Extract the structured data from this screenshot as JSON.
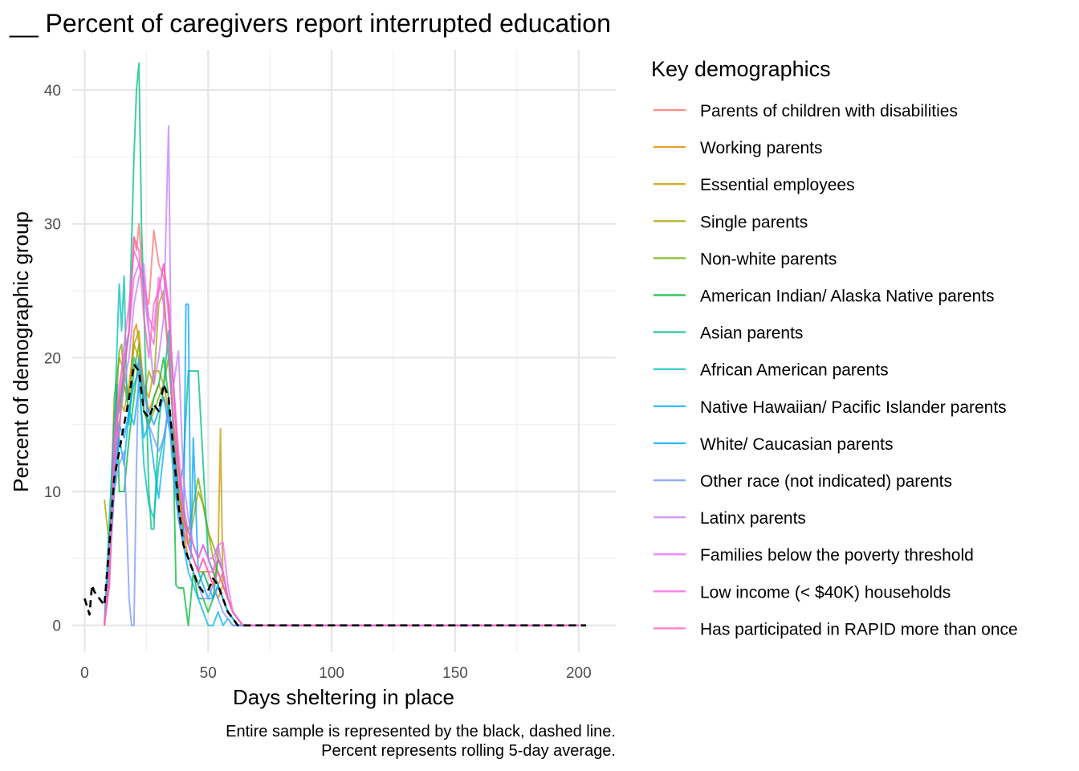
{
  "chart_data": {
    "type": "line",
    "title": "__ Percent of caregivers report interrupted education",
    "xlabel": "Days sheltering in place",
    "ylabel": "Percent of demographic group",
    "caption": [
      "Entire sample is represented by the black, dashed line.",
      "Percent represents rolling 5-day average."
    ],
    "xlim": [
      -5,
      215
    ],
    "ylim": [
      -2,
      43
    ],
    "x_ticks": [
      0,
      50,
      100,
      150,
      200
    ],
    "y_ticks": [
      0,
      10,
      20,
      30,
      40
    ],
    "grid": true,
    "legend": {
      "title": "Key demographics",
      "placement": "right"
    },
    "series": [
      {
        "name": "Parents of children with disabilities",
        "color": "#F8766D",
        "x": [
          8,
          10,
          12,
          14,
          16,
          18,
          20,
          21,
          22,
          24,
          26,
          28,
          30,
          32,
          34,
          36,
          38,
          40,
          42,
          44,
          46,
          48,
          50,
          52,
          54,
          56,
          58,
          60,
          62,
          64,
          70,
          100,
          150,
          200
        ],
        "y": [
          0,
          5,
          16,
          14,
          20,
          22,
          29,
          28,
          30,
          25,
          24,
          29.5,
          27,
          26,
          24,
          18,
          12,
          8,
          7,
          6,
          5,
          6,
          5,
          4,
          3,
          4,
          2,
          1,
          0.5,
          0,
          0,
          0,
          0,
          0
        ]
      },
      {
        "name": "Working parents",
        "color": "#E58700",
        "x": [
          8,
          10,
          12,
          14,
          16,
          18,
          20,
          21,
          22,
          24,
          26,
          28,
          30,
          32,
          34,
          36,
          38,
          40,
          42,
          44,
          46,
          48,
          50,
          52,
          54,
          56,
          58,
          60,
          62,
          64,
          70,
          100,
          150,
          200
        ],
        "y": [
          0,
          3,
          12,
          15,
          18,
          17,
          22,
          22.5,
          21,
          18,
          16,
          17,
          18,
          17,
          16,
          14,
          10,
          7,
          6,
          5,
          4,
          4,
          4,
          3,
          2,
          3,
          2,
          1,
          0.5,
          0,
          0,
          0,
          0,
          0
        ]
      },
      {
        "name": "Essential employees",
        "color": "#C99800",
        "x": [
          8,
          10,
          12,
          14,
          16,
          18,
          20,
          22,
          24,
          26,
          28,
          30,
          32,
          34,
          36,
          38,
          40,
          42,
          44,
          46,
          48,
          50,
          52,
          54,
          55,
          56,
          58,
          60,
          62,
          64,
          70,
          100,
          150,
          200
        ],
        "y": [
          0,
          4,
          13,
          17,
          16,
          18,
          21,
          20,
          18,
          17,
          19,
          19,
          18,
          16,
          13,
          10,
          7,
          5,
          4,
          3,
          4,
          3,
          3,
          5,
          14.7,
          3,
          2,
          1,
          0.5,
          0,
          0,
          0,
          0,
          0
        ]
      },
      {
        "name": "Single parents",
        "color": "#A3A500",
        "x": [
          8,
          10,
          12,
          14,
          16,
          18,
          20,
          22,
          24,
          26,
          28,
          30,
          32,
          34,
          36,
          38,
          40,
          42,
          44,
          46,
          48,
          50,
          52,
          54,
          56,
          58,
          60,
          62,
          64,
          70,
          100,
          150,
          200
        ],
        "y": [
          9.4,
          6,
          17,
          20,
          19,
          17,
          21,
          22,
          17,
          19,
          18,
          24,
          25,
          20,
          15,
          12,
          9,
          6,
          8,
          10,
          9,
          7,
          5,
          4,
          3,
          2,
          1,
          0.5,
          0,
          0,
          0,
          0,
          0
        ]
      },
      {
        "name": "Non-white parents",
        "color": "#6BB100",
        "x": [
          8,
          10,
          12,
          14,
          15,
          16,
          18,
          20,
          22,
          24,
          26,
          28,
          30,
          32,
          34,
          36,
          38,
          40,
          42,
          44,
          46,
          48,
          50,
          52,
          54,
          56,
          58,
          60,
          62,
          64,
          70,
          100,
          150,
          200
        ],
        "y": [
          0,
          4,
          14,
          20.5,
          21,
          18,
          16,
          19,
          21,
          16,
          15,
          16,
          17,
          18,
          20,
          15,
          10,
          8,
          7,
          9,
          11,
          9,
          7,
          6,
          5,
          4,
          2,
          1,
          0.5,
          0,
          0,
          0,
          0,
          0
        ]
      },
      {
        "name": "American Indian/ Alaska Native parents",
        "color": "#00BA38",
        "x": [
          8,
          10,
          12,
          13,
          14,
          16,
          18,
          20,
          22,
          24,
          26,
          28,
          30,
          32,
          34,
          36,
          37,
          38,
          40,
          42,
          44,
          46,
          48,
          50,
          52,
          54,
          56,
          58,
          60,
          62,
          64,
          70,
          100,
          150,
          200
        ],
        "y": [
          0,
          6,
          12,
          18,
          10,
          10,
          14,
          17,
          20,
          16,
          15,
          17,
          18,
          20,
          17,
          12,
          3,
          2.8,
          2.8,
          0,
          4,
          2,
          2,
          1,
          2,
          5,
          4,
          2,
          1,
          0.5,
          0,
          0,
          0,
          0,
          0
        ]
      },
      {
        "name": "Asian parents",
        "color": "#00BF7D",
        "x": [
          8,
          10,
          12,
          14,
          16,
          18,
          20,
          21,
          22,
          23,
          24,
          26,
          27,
          28,
          30,
          32,
          34,
          36,
          38,
          40,
          42,
          44,
          46,
          48,
          50,
          52,
          54,
          56,
          58,
          60,
          62,
          64,
          70,
          100,
          150,
          200
        ],
        "y": [
          0,
          5,
          15,
          16,
          19,
          22,
          35,
          40,
          42,
          30,
          24,
          10,
          7.2,
          7.2,
          15,
          18,
          22,
          14,
          10,
          12,
          19,
          19,
          19,
          12,
          5,
          4,
          3,
          2,
          1,
          0.5,
          0,
          0,
          0,
          0,
          0,
          0
        ]
      },
      {
        "name": "African American parents",
        "color": "#00C0B8",
        "x": [
          8,
          10,
          12,
          14,
          15,
          16,
          17,
          18,
          20,
          22,
          24,
          26,
          28,
          30,
          32,
          34,
          36,
          38,
          40,
          42,
          44,
          46,
          48,
          50,
          52,
          54,
          56,
          58,
          60,
          62,
          64,
          70,
          100,
          150,
          200
        ],
        "y": [
          0,
          8,
          15,
          25.5,
          22,
          26.1,
          18,
          15,
          20,
          19,
          12,
          9,
          8,
          12,
          14,
          16,
          11,
          8,
          6,
          5,
          4,
          3,
          4,
          3,
          2,
          3,
          2,
          1,
          0.5,
          0,
          0,
          0,
          0,
          0,
          0
        ]
      },
      {
        "name": "Native Hawaiian/ Pacific Islander parents",
        "color": "#00B4EF",
        "x": [
          8,
          10,
          12,
          14,
          16,
          18,
          20,
          22,
          24,
          26,
          28,
          30,
          32,
          34,
          36,
          38,
          40,
          42,
          44,
          46,
          48,
          50,
          52,
          54,
          56,
          58,
          60,
          62,
          64,
          70,
          100,
          150,
          200
        ],
        "y": [
          0,
          4,
          10,
          14,
          12,
          16,
          15,
          18,
          14,
          15,
          12,
          9.5,
          13,
          17,
          12,
          8,
          6,
          4,
          3,
          2,
          1,
          0,
          0,
          1,
          0,
          0.5,
          0,
          0,
          0,
          0,
          0,
          0,
          0
        ]
      },
      {
        "name": "White/ Caucasian parents",
        "color": "#00A5FF",
        "x": [
          8,
          10,
          12,
          14,
          16,
          18,
          20,
          22,
          24,
          26,
          28,
          30,
          32,
          34,
          36,
          38,
          40,
          41,
          42,
          43,
          44,
          46,
          48,
          50,
          52,
          54,
          56,
          58,
          60,
          62,
          64,
          70,
          100,
          150,
          200
        ],
        "y": [
          0,
          5,
          11,
          15,
          14,
          16,
          18,
          19,
          17,
          16,
          15,
          16,
          17,
          15,
          13,
          9,
          6,
          24,
          24,
          5,
          14,
          4,
          3,
          2,
          2,
          3,
          2,
          1,
          0.5,
          0,
          0,
          0,
          0,
          0,
          0
        ]
      },
      {
        "name": "Other race (not indicated) parents",
        "color": "#7997FF",
        "x": [
          8,
          10,
          12,
          14,
          16,
          17,
          18,
          19,
          20,
          21,
          22,
          24,
          26,
          28,
          30,
          32,
          34,
          36,
          38,
          40,
          42,
          44,
          46,
          48,
          50,
          52,
          54,
          56,
          58,
          60,
          62,
          64,
          70,
          100,
          150,
          200
        ],
        "y": [
          0,
          4,
          10,
          12,
          13,
          8,
          2,
          0,
          0,
          12,
          20,
          18,
          15,
          14,
          13,
          14,
          16,
          12,
          8,
          6,
          5,
          4,
          3,
          2,
          2,
          3,
          2,
          1,
          0.5,
          0,
          0,
          0,
          0,
          0,
          0,
          0
        ]
      },
      {
        "name": "Latinx parents",
        "color": "#C77CFF",
        "x": [
          8,
          10,
          12,
          14,
          16,
          18,
          20,
          22,
          24,
          26,
          28,
          30,
          32,
          34,
          35,
          36,
          38,
          40,
          42,
          44,
          46,
          48,
          50,
          52,
          54,
          56,
          58,
          60,
          62,
          64,
          70,
          100,
          150,
          200
        ],
        "y": [
          0,
          4,
          12,
          15,
          18,
          20,
          24,
          26,
          27,
          22,
          18,
          20,
          23,
          37.3,
          20,
          18,
          20.5,
          11,
          8,
          6,
          5,
          6,
          5,
          4,
          6,
          4,
          2,
          1,
          0.5,
          0,
          0,
          0,
          0,
          0
        ]
      },
      {
        "name": "Families below the poverty threshold",
        "color": "#E76BF3",
        "x": [
          8,
          10,
          12,
          14,
          16,
          18,
          20,
          22,
          24,
          26,
          28,
          30,
          32,
          34,
          36,
          38,
          40,
          42,
          44,
          46,
          48,
          50,
          52,
          54,
          56,
          58,
          60,
          62,
          64,
          70,
          100,
          150,
          200
        ],
        "y": [
          0,
          4,
          14,
          18,
          20,
          22,
          26,
          27,
          25,
          22,
          21,
          25,
          27,
          23,
          18,
          13,
          9,
          7,
          6,
          5,
          6,
          5,
          5,
          6,
          6.2,
          3,
          1,
          0.5,
          0,
          0,
          0,
          0,
          0
        ]
      },
      {
        "name": "Low income (< $40K) households",
        "color": "#FA62DB",
        "x": [
          8,
          10,
          12,
          14,
          16,
          18,
          20,
          22,
          24,
          26,
          28,
          30,
          32,
          34,
          36,
          38,
          40,
          42,
          44,
          46,
          48,
          50,
          52,
          54,
          56,
          58,
          60,
          62,
          64,
          70,
          100,
          150,
          200
        ],
        "y": [
          0,
          3,
          12,
          17,
          21,
          24,
          28,
          27,
          26,
          23,
          22,
          26,
          24,
          20,
          15,
          11,
          8,
          6,
          5,
          4,
          5,
          4,
          4,
          5,
          4,
          2,
          1,
          0.5,
          0,
          0,
          0,
          0,
          0
        ]
      },
      {
        "name": "Has participated in RAPID more than once",
        "color": "#FF62BC",
        "x": [
          8,
          10,
          12,
          14,
          16,
          18,
          20,
          22,
          24,
          26,
          28,
          30,
          32,
          34,
          36,
          38,
          40,
          42,
          44,
          46,
          48,
          50,
          52,
          54,
          56,
          58,
          60,
          62,
          64,
          70,
          100,
          150,
          200
        ],
        "y": [
          0,
          4,
          13,
          17,
          19,
          22,
          29,
          28,
          23,
          20,
          24,
          25,
          27,
          24,
          17,
          12,
          8,
          6,
          5,
          4,
          5,
          4,
          3,
          4,
          3,
          2,
          1,
          0.5,
          0,
          0,
          0,
          0,
          0
        ]
      },
      {
        "name": "",
        "color": "#000000",
        "dashed": true,
        "x": [
          0,
          2,
          3,
          4,
          6,
          8,
          10,
          12,
          14,
          16,
          18,
          20,
          22,
          24,
          26,
          28,
          30,
          32,
          34,
          36,
          38,
          40,
          42,
          44,
          46,
          48,
          50,
          52,
          54,
          56,
          58,
          60,
          62,
          64,
          80,
          120,
          160,
          203
        ],
        "y": [
          2,
          0.8,
          3,
          2.5,
          2,
          1.5,
          6,
          11,
          13,
          15,
          17,
          19.5,
          19,
          16,
          15.5,
          16.5,
          16,
          18,
          17,
          13,
          9,
          6,
          5,
          4,
          3,
          2.5,
          2.6,
          3.5,
          3,
          2,
          1,
          0.5,
          0,
          0,
          0,
          0,
          0,
          0
        ]
      }
    ]
  }
}
